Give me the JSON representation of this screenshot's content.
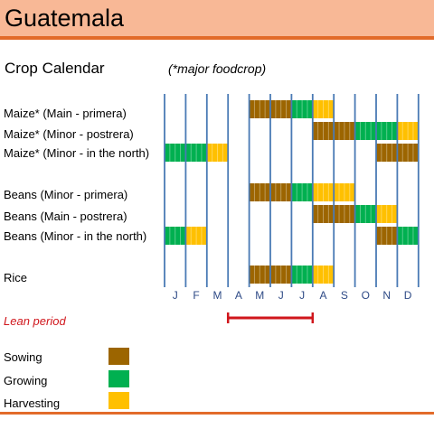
{
  "page": {
    "title": "Guatemala",
    "subtitle": "Crop Calendar",
    "note": "(*major foodcrop)"
  },
  "chart_data": {
    "type": "gantt",
    "months": [
      "J",
      "F",
      "M",
      "A",
      "M",
      "J",
      "J",
      "A",
      "S",
      "O",
      "N",
      "D"
    ],
    "phases": {
      "sowing": {
        "label": "Sowing",
        "color": "#9c6500"
      },
      "growing": {
        "label": "Growing",
        "color": "#00b050"
      },
      "harvesting": {
        "label": "Harvesting",
        "color": "#ffc000"
      }
    },
    "rows": [
      {
        "label": "Maize* (Main - primera)",
        "segments": [
          {
            "phase": "sowing",
            "start": 4,
            "end": 6
          },
          {
            "phase": "growing",
            "start": 6,
            "end": 7
          },
          {
            "phase": "harvesting",
            "start": 7,
            "end": 8
          }
        ]
      },
      {
        "label": "Maize* (Minor - postrera)",
        "segments": [
          {
            "phase": "sowing",
            "start": 7,
            "end": 9
          },
          {
            "phase": "growing",
            "start": 9,
            "end": 11
          },
          {
            "phase": "harvesting",
            "start": 11,
            "end": 12
          }
        ]
      },
      {
        "label": "Maize* (Minor - in the north)",
        "segments": [
          {
            "phase": "growing",
            "start": 0,
            "end": 2
          },
          {
            "phase": "harvesting",
            "start": 2,
            "end": 3
          },
          {
            "phase": "sowing",
            "start": 10,
            "end": 12
          }
        ]
      },
      {
        "label": "Beans (Minor - primera)",
        "segments": [
          {
            "phase": "sowing",
            "start": 4,
            "end": 6
          },
          {
            "phase": "growing",
            "start": 6,
            "end": 7
          },
          {
            "phase": "harvesting",
            "start": 7,
            "end": 9
          }
        ]
      },
      {
        "label": "Beans (Main - postrera)",
        "segments": [
          {
            "phase": "sowing",
            "start": 7,
            "end": 9
          },
          {
            "phase": "growing",
            "start": 9,
            "end": 10
          },
          {
            "phase": "harvesting",
            "start": 10,
            "end": 11
          }
        ]
      },
      {
        "label": "Beans (Minor - in the north)",
        "segments": [
          {
            "phase": "growing",
            "start": 0,
            "end": 1
          },
          {
            "phase": "harvesting",
            "start": 1,
            "end": 2
          },
          {
            "phase": "sowing",
            "start": 10,
            "end": 11
          },
          {
            "phase": "growing",
            "start": 11,
            "end": 12
          }
        ]
      },
      {
        "label": "Rice",
        "segments": [
          {
            "phase": "sowing",
            "start": 4,
            "end": 6
          },
          {
            "phase": "growing",
            "start": 6,
            "end": 7
          },
          {
            "phase": "harvesting",
            "start": 7,
            "end": 8
          }
        ]
      }
    ],
    "lean_period": {
      "label": "Lean period",
      "color": "#d0161c",
      "start": 3,
      "end": 7
    },
    "gridline_color": "#4a7ab5",
    "tick_color": "#2e4a86"
  }
}
